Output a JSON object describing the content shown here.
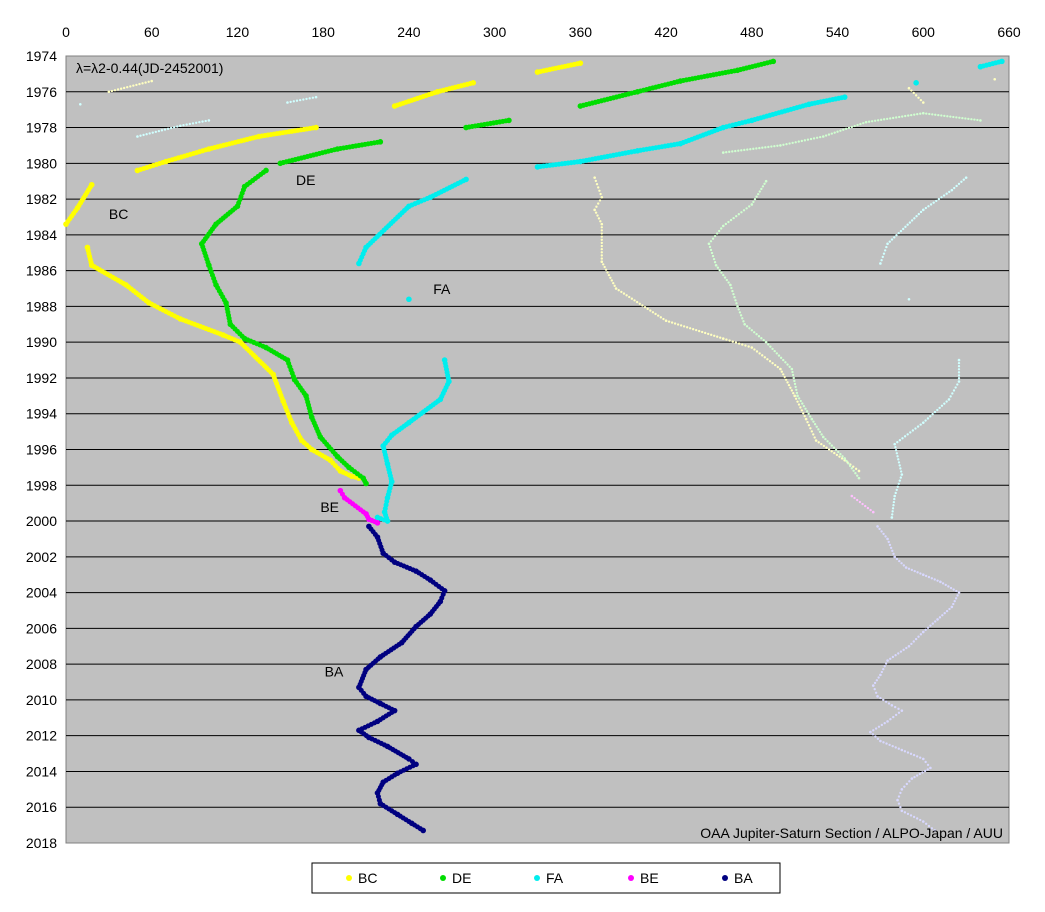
{
  "chart_data": {
    "type": "scatter",
    "formula": "λ=λ2-0.44(JD-2452001)",
    "credit": "OAA Jupiter-Saturn Section / ALPO-Japan / AUU",
    "x_ticks": [
      0,
      60,
      120,
      180,
      240,
      300,
      360,
      420,
      480,
      540,
      600,
      660
    ],
    "y_ticks": [
      1974,
      1976,
      1978,
      1980,
      1982,
      1984,
      1986,
      1988,
      1990,
      1992,
      1994,
      1996,
      1998,
      2000,
      2002,
      2004,
      2006,
      2008,
      2010,
      2012,
      2014,
      2016,
      2018
    ],
    "xlim": [
      0,
      660
    ],
    "ylim": [
      1974,
      2018
    ],
    "y_inverted": true,
    "x_axis_position": "top",
    "grid": "horizontal",
    "legend_position": "bottom",
    "series": [
      {
        "name": "BC",
        "color": "#ffff00",
        "points": [
          [
            0,
            1983.4
          ],
          [
            8,
            1982.5
          ],
          [
            18,
            1981.2
          ],
          [
            15,
            1984.7
          ],
          [
            18,
            1985.7
          ],
          [
            42,
            1986.8
          ],
          [
            58,
            1987.8
          ],
          [
            80,
            1988.7
          ],
          [
            110,
            1989.6
          ],
          [
            122,
            1990.0
          ],
          [
            145,
            1991.8
          ],
          [
            152,
            1993.3
          ],
          [
            158,
            1994.5
          ],
          [
            165,
            1995.5
          ],
          [
            172,
            1996.0
          ],
          [
            185,
            1996.6
          ],
          [
            192,
            1997.2
          ],
          [
            200,
            1997.5
          ],
          [
            205,
            1997.6
          ],
          [
            50,
            1980.4
          ],
          [
            70,
            1979.9
          ],
          [
            100,
            1979.2
          ],
          [
            135,
            1978.5
          ],
          [
            175,
            1978.0
          ],
          [
            230,
            1976.8
          ],
          [
            260,
            1976.0
          ],
          [
            285,
            1975.5
          ],
          [
            330,
            1974.9
          ],
          [
            360,
            1974.4
          ]
        ]
      },
      {
        "name": "DE",
        "color": "#00dd00",
        "points": [
          [
            140,
            1980.4
          ],
          [
            125,
            1981.3
          ],
          [
            120,
            1982.4
          ],
          [
            105,
            1983.4
          ],
          [
            95,
            1984.5
          ],
          [
            100,
            1985.7
          ],
          [
            105,
            1986.8
          ],
          [
            112,
            1987.8
          ],
          [
            115,
            1989.0
          ],
          [
            125,
            1989.8
          ],
          [
            140,
            1990.3
          ],
          [
            155,
            1991.0
          ],
          [
            160,
            1992.1
          ],
          [
            168,
            1993.0
          ],
          [
            172,
            1994.2
          ],
          [
            178,
            1995.3
          ],
          [
            190,
            1996.4
          ],
          [
            198,
            1997.0
          ],
          [
            208,
            1997.6
          ],
          [
            210,
            1997.9
          ],
          [
            150,
            1980.0
          ],
          [
            190,
            1979.2
          ],
          [
            220,
            1978.8
          ],
          [
            280,
            1978.0
          ],
          [
            310,
            1977.6
          ],
          [
            360,
            1976.8
          ],
          [
            400,
            1976.0
          ],
          [
            430,
            1975.4
          ],
          [
            470,
            1974.8
          ],
          [
            495,
            1974.3
          ]
        ]
      },
      {
        "name": "FA",
        "color": "#00eeee",
        "points": [
          [
            205,
            1985.6
          ],
          [
            210,
            1984.7
          ],
          [
            240,
            1982.4
          ],
          [
            255,
            1981.9
          ],
          [
            280,
            1980.9
          ],
          [
            330,
            1980.2
          ],
          [
            360,
            1979.9
          ],
          [
            400,
            1979.3
          ],
          [
            430,
            1978.9
          ],
          [
            460,
            1978.0
          ],
          [
            480,
            1977.6
          ],
          [
            520,
            1976.7
          ],
          [
            545,
            1976.3
          ],
          [
            595,
            1975.5
          ],
          [
            640,
            1974.6
          ],
          [
            655,
            1974.3
          ],
          [
            240,
            1987.6
          ],
          [
            265,
            1991.0
          ],
          [
            268,
            1992.2
          ],
          [
            262,
            1993.2
          ],
          [
            240,
            1994.5
          ],
          [
            228,
            1995.2
          ],
          [
            222,
            1995.8
          ],
          [
            225,
            1996.8
          ],
          [
            228,
            1997.8
          ],
          [
            225,
            1998.7
          ],
          [
            223,
            1999.5
          ],
          [
            225,
            2000.0
          ],
          [
            218,
            1999.8
          ]
        ]
      },
      {
        "name": "BE",
        "color": "#ff00ff",
        "points": [
          [
            192,
            1998.3
          ],
          [
            195,
            1998.7
          ],
          [
            210,
            1999.6
          ],
          [
            212,
            1999.9
          ],
          [
            218,
            2000.1
          ]
        ]
      },
      {
        "name": "BA",
        "color": "#000080",
        "points": [
          [
            212,
            2000.3
          ],
          [
            218,
            2000.9
          ],
          [
            222,
            2001.8
          ],
          [
            230,
            2002.3
          ],
          [
            245,
            2002.8
          ],
          [
            255,
            2003.3
          ],
          [
            265,
            2003.9
          ],
          [
            262,
            2004.5
          ],
          [
            255,
            2005.2
          ],
          [
            245,
            2005.9
          ],
          [
            235,
            2006.8
          ],
          [
            220,
            2007.6
          ],
          [
            210,
            2008.3
          ],
          [
            205,
            2009.3
          ],
          [
            210,
            2009.8
          ],
          [
            220,
            2010.2
          ],
          [
            230,
            2010.6
          ],
          [
            218,
            2011.2
          ],
          [
            205,
            2011.7
          ],
          [
            212,
            2012.1
          ],
          [
            225,
            2012.6
          ],
          [
            240,
            2013.3
          ],
          [
            245,
            2013.6
          ],
          [
            232,
            2014.1
          ],
          [
            222,
            2014.6
          ],
          [
            218,
            2015.2
          ],
          [
            220,
            2015.8
          ],
          [
            232,
            2016.4
          ],
          [
            242,
            2016.9
          ],
          [
            250,
            2017.3
          ]
        ]
      }
    ],
    "prev_cycle_series": [
      {
        "name": "BC",
        "color": "#ffffc0",
        "points": [
          [
            30,
            1976.0
          ],
          [
            60,
            1975.4
          ],
          [
            370,
            1980.8
          ],
          [
            375,
            1981.9
          ],
          [
            370,
            1982.6
          ],
          [
            375,
            1983.4
          ],
          [
            375,
            1985.5
          ],
          [
            385,
            1987.0
          ],
          [
            420,
            1988.8
          ],
          [
            460,
            1989.8
          ],
          [
            480,
            1990.3
          ],
          [
            500,
            1991.5
          ],
          [
            510,
            1993.0
          ],
          [
            518,
            1994.3
          ],
          [
            525,
            1995.5
          ],
          [
            545,
            1996.6
          ],
          [
            555,
            1997.2
          ],
          [
            590,
            1975.8
          ],
          [
            600,
            1976.6
          ],
          [
            650,
            1975.3
          ]
        ]
      },
      {
        "name": "DE",
        "color": "#d0ffd0",
        "points": [
          [
            490,
            1981.0
          ],
          [
            480,
            1982.3
          ],
          [
            460,
            1983.5
          ],
          [
            450,
            1984.5
          ],
          [
            455,
            1985.7
          ],
          [
            465,
            1986.8
          ],
          [
            470,
            1988.0
          ],
          [
            475,
            1989.0
          ],
          [
            490,
            1990.0
          ],
          [
            508,
            1991.5
          ],
          [
            512,
            1993.0
          ],
          [
            522,
            1994.3
          ],
          [
            530,
            1995.3
          ],
          [
            545,
            1996.5
          ],
          [
            555,
            1997.6
          ],
          [
            460,
            1979.4
          ],
          [
            500,
            1979.0
          ],
          [
            530,
            1978.5
          ],
          [
            560,
            1977.7
          ],
          [
            600,
            1977.2
          ],
          [
            640,
            1977.6
          ]
        ]
      },
      {
        "name": "FA",
        "color": "#d0ffff",
        "points": [
          [
            570,
            1985.6
          ],
          [
            575,
            1984.5
          ],
          [
            600,
            1982.6
          ],
          [
            620,
            1981.5
          ],
          [
            630,
            1980.8
          ],
          [
            590,
            1987.6
          ],
          [
            625,
            1991.0
          ],
          [
            625,
            1992.2
          ],
          [
            618,
            1993.2
          ],
          [
            600,
            1994.5
          ],
          [
            580,
            1995.7
          ],
          [
            585,
            1997.4
          ],
          [
            580,
            1998.6
          ],
          [
            578,
            1999.8
          ],
          [
            10,
            1976.7
          ],
          [
            50,
            1978.5
          ],
          [
            80,
            1977.9
          ],
          [
            100,
            1977.6
          ],
          [
            155,
            1976.6
          ],
          [
            175,
            1976.3
          ]
        ]
      },
      {
        "name": "BE",
        "color": "#ffc0ff",
        "points": [
          [
            550,
            1998.6
          ],
          [
            565,
            1999.5
          ]
        ]
      },
      {
        "name": "BA",
        "color": "#d8d8ff",
        "points": [
          [
            568,
            2000.3
          ],
          [
            575,
            2001.0
          ],
          [
            580,
            2002.0
          ],
          [
            588,
            2002.6
          ],
          [
            600,
            2003.0
          ],
          [
            612,
            2003.4
          ],
          [
            625,
            2004.0
          ],
          [
            620,
            2004.8
          ],
          [
            610,
            2005.5
          ],
          [
            600,
            2006.2
          ],
          [
            590,
            2007.0
          ],
          [
            575,
            2007.8
          ],
          [
            570,
            2008.6
          ],
          [
            565,
            2009.2
          ],
          [
            568,
            2009.8
          ],
          [
            578,
            2010.3
          ],
          [
            585,
            2010.6
          ],
          [
            575,
            2011.2
          ],
          [
            563,
            2011.8
          ],
          [
            570,
            2012.3
          ],
          [
            585,
            2012.8
          ],
          [
            600,
            2013.3
          ],
          [
            605,
            2013.8
          ],
          [
            592,
            2014.4
          ],
          [
            585,
            2015.0
          ],
          [
            582,
            2015.6
          ],
          [
            585,
            2016.2
          ],
          [
            600,
            2016.8
          ],
          [
            608,
            2017.3
          ]
        ]
      }
    ],
    "annotations": [
      {
        "text": "BC",
        "x": 30,
        "y": 1983.1
      },
      {
        "text": "DE",
        "x": 161,
        "y": 1981.2
      },
      {
        "text": "FA",
        "x": 257,
        "y": 1987.3
      },
      {
        "text": "BE",
        "x": 178,
        "y": 1999.5
      },
      {
        "text": "BA",
        "x": 181,
        "y": 2008.7
      }
    ],
    "legend": [
      "BC",
      "DE",
      "FA",
      "BE",
      "BA"
    ]
  }
}
